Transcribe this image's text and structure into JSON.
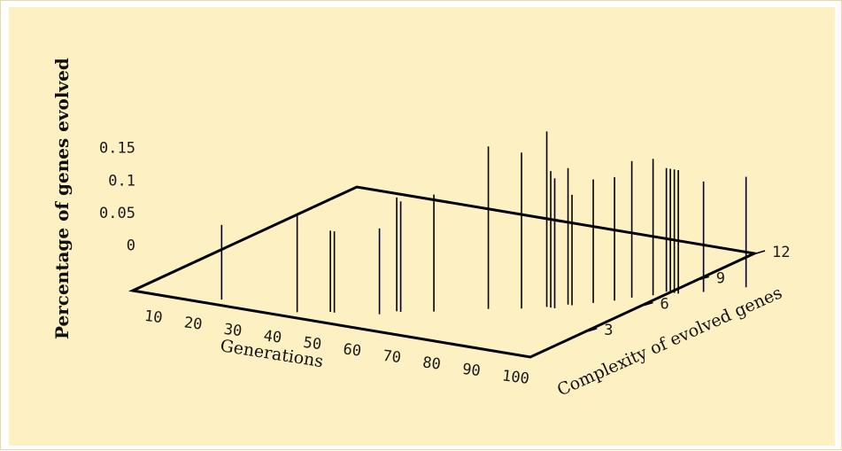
{
  "colors": {
    "panel": "#fdf0c2",
    "frame": "#e6d9a8",
    "ink": "#000000"
  },
  "chart_data": {
    "type": "3d-impulse",
    "title": "",
    "xlabel": "Generations",
    "ylabel": "Complexity of evolved genes",
    "zlabel": "Percentage of genes evolved",
    "xlim": [
      5,
      105
    ],
    "ylim": [
      0,
      12
    ],
    "zlim": [
      -0.07,
      0.15
    ],
    "x_ticks": [
      "10",
      "20",
      "30",
      "40",
      "50",
      "60",
      "70",
      "80",
      "90",
      "100"
    ],
    "y_ticks": [
      "3",
      "6",
      "9",
      "12"
    ],
    "z_ticks": [
      "0",
      "0.05",
      "0.1",
      "0.15"
    ],
    "grid": false,
    "points": [
      {
        "x": 25,
        "y": 0.5,
        "z": 0.045
      },
      {
        "x": 44,
        "y": 0.5,
        "z": 0.08
      },
      {
        "x": 50,
        "y": 1.0,
        "z": 0.055
      },
      {
        "x": 51,
        "y": 1.0,
        "z": 0.055
      },
      {
        "x": 60,
        "y": 1.5,
        "z": 0.062
      },
      {
        "x": 62,
        "y": 2.0,
        "z": 0.105
      },
      {
        "x": 63,
        "y": 2.0,
        "z": 0.1
      },
      {
        "x": 69,
        "y": 2.5,
        "z": 0.11
      },
      {
        "x": 78,
        "y": 3.5,
        "z": 0.18
      },
      {
        "x": 84,
        "y": 4.0,
        "z": 0.17
      },
      {
        "x": 88,
        "y": 4.5,
        "z": 0.2
      },
      {
        "x": 89,
        "y": 4.5,
        "z": 0.14
      },
      {
        "x": 90,
        "y": 4.5,
        "z": 0.13
      },
      {
        "x": 91,
        "y": 5.0,
        "z": 0.14
      },
      {
        "x": 92,
        "y": 5.0,
        "z": 0.1
      },
      {
        "x": 95,
        "y": 5.5,
        "z": 0.12
      },
      {
        "x": 98,
        "y": 6.0,
        "z": 0.12
      },
      {
        "x": 100,
        "y": 6.5,
        "z": 0.14
      },
      {
        "x": 103,
        "y": 7.0,
        "z": 0.14
      },
      {
        "x": 104,
        "y": 7.5,
        "z": 0.12
      },
      {
        "x": 105,
        "y": 7.5,
        "z": 0.12
      },
      {
        "x": 106,
        "y": 7.5,
        "z": 0.12
      },
      {
        "x": 107,
        "y": 7.5,
        "z": 0.12
      },
      {
        "x": 111,
        "y": 8.0,
        "z": 0.1
      },
      {
        "x": 117,
        "y": 9.0,
        "z": 0.1
      }
    ]
  }
}
